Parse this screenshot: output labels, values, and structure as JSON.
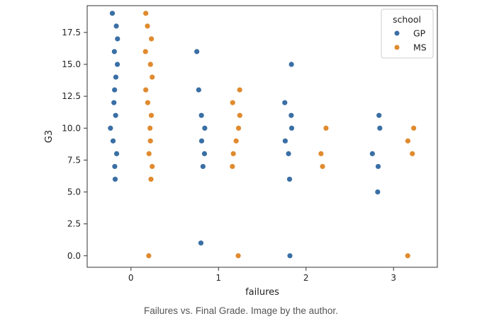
{
  "chart_data": {
    "type": "scatter",
    "subtype": "strip",
    "xlabel": "failures",
    "ylabel": "G3",
    "x_ticks": [
      0,
      1,
      2,
      3
    ],
    "y_ticks": [
      0.0,
      2.5,
      5.0,
      7.5,
      10.0,
      12.5,
      15.0,
      17.5
    ],
    "y_tick_labels": [
      "0.0",
      "2.5",
      "5.0",
      "7.5",
      "10.0",
      "12.5",
      "15.0",
      "17.5"
    ],
    "xlim": [
      -0.5,
      3.5
    ],
    "ylim": [
      -0.9,
      19.6
    ],
    "grid": false,
    "legend": {
      "title": "school",
      "placement": "top-right",
      "entries": [
        {
          "name": "GP",
          "color": "#3a6fa5"
        },
        {
          "name": "MS",
          "color": "#e08a2e"
        }
      ]
    },
    "series": [
      {
        "name": "GP",
        "color": "#3a6fa5",
        "points": [
          {
            "x": 0,
            "y": 6
          },
          {
            "x": 0,
            "y": 7
          },
          {
            "x": 0,
            "y": 8
          },
          {
            "x": 0,
            "y": 9
          },
          {
            "x": 0,
            "y": 10
          },
          {
            "x": 0,
            "y": 11
          },
          {
            "x": 0,
            "y": 12
          },
          {
            "x": 0,
            "y": 13
          },
          {
            "x": 0,
            "y": 14
          },
          {
            "x": 0,
            "y": 15
          },
          {
            "x": 0,
            "y": 16
          },
          {
            "x": 0,
            "y": 17
          },
          {
            "x": 0,
            "y": 18
          },
          {
            "x": 0,
            "y": 19
          },
          {
            "x": 1,
            "y": 1
          },
          {
            "x": 1,
            "y": 7
          },
          {
            "x": 1,
            "y": 8
          },
          {
            "x": 1,
            "y": 9
          },
          {
            "x": 1,
            "y": 10
          },
          {
            "x": 1,
            "y": 11
          },
          {
            "x": 1,
            "y": 13
          },
          {
            "x": 1,
            "y": 16
          },
          {
            "x": 2,
            "y": 0
          },
          {
            "x": 2,
            "y": 6
          },
          {
            "x": 2,
            "y": 8
          },
          {
            "x": 2,
            "y": 9
          },
          {
            "x": 2,
            "y": 10
          },
          {
            "x": 2,
            "y": 11
          },
          {
            "x": 2,
            "y": 12
          },
          {
            "x": 2,
            "y": 15
          },
          {
            "x": 3,
            "y": 5
          },
          {
            "x": 3,
            "y": 7
          },
          {
            "x": 3,
            "y": 8
          },
          {
            "x": 3,
            "y": 10
          },
          {
            "x": 3,
            "y": 11
          }
        ]
      },
      {
        "name": "MS",
        "color": "#e08a2e",
        "points": [
          {
            "x": 0,
            "y": 0
          },
          {
            "x": 0,
            "y": 6
          },
          {
            "x": 0,
            "y": 7
          },
          {
            "x": 0,
            "y": 8
          },
          {
            "x": 0,
            "y": 9
          },
          {
            "x": 0,
            "y": 10
          },
          {
            "x": 0,
            "y": 11
          },
          {
            "x": 0,
            "y": 12
          },
          {
            "x": 0,
            "y": 13
          },
          {
            "x": 0,
            "y": 14
          },
          {
            "x": 0,
            "y": 15
          },
          {
            "x": 0,
            "y": 16
          },
          {
            "x": 0,
            "y": 17
          },
          {
            "x": 0,
            "y": 18
          },
          {
            "x": 0,
            "y": 19
          },
          {
            "x": 1,
            "y": 0
          },
          {
            "x": 1,
            "y": 7
          },
          {
            "x": 1,
            "y": 8
          },
          {
            "x": 1,
            "y": 9
          },
          {
            "x": 1,
            "y": 10
          },
          {
            "x": 1,
            "y": 11
          },
          {
            "x": 1,
            "y": 12
          },
          {
            "x": 1,
            "y": 13
          },
          {
            "x": 2,
            "y": 7
          },
          {
            "x": 2,
            "y": 8
          },
          {
            "x": 2,
            "y": 10
          },
          {
            "x": 3,
            "y": 0
          },
          {
            "x": 3,
            "y": 8
          },
          {
            "x": 3,
            "y": 9
          },
          {
            "x": 3,
            "y": 10
          }
        ]
      }
    ]
  },
  "caption": "Failures vs. Final Grade. Image by the author."
}
